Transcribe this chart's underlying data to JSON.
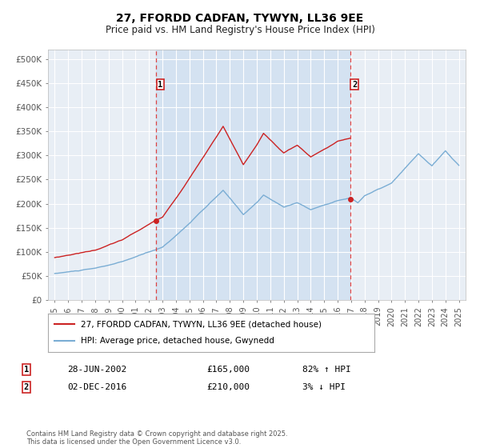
{
  "title": "27, FFORDD CADFAN, TYWYN, LL36 9EE",
  "subtitle": "Price paid vs. HM Land Registry's House Price Index (HPI)",
  "legend_line1": "27, FFORDD CADFAN, TYWYN, LL36 9EE (detached house)",
  "legend_line2": "HPI: Average price, detached house, Gwynedd",
  "transaction1_date": "28-JUN-2002",
  "transaction1_price": "£165,000",
  "transaction1_hpi": "82% ↑ HPI",
  "transaction1_x": 2002.49,
  "transaction1_y": 165000,
  "transaction2_date": "02-DEC-2016",
  "transaction2_price": "£210,000",
  "transaction2_hpi": "3% ↓ HPI",
  "transaction2_x": 2016.92,
  "transaction2_y": 210000,
  "vline1_x": 2002.49,
  "vline2_x": 2016.92,
  "ylim": [
    0,
    520000
  ],
  "xlim": [
    1994.5,
    2025.5
  ],
  "background_color": "#ffffff",
  "plot_bg_color": "#e8eef5",
  "grid_color": "#ffffff",
  "hpi_color": "#7aadd4",
  "price_color": "#cc2222",
  "vline_color": "#dd4444",
  "footer_text": "Contains HM Land Registry data © Crown copyright and database right 2025.\nThis data is licensed under the Open Government Licence v3.0.",
  "yticks": [
    0,
    50000,
    100000,
    150000,
    200000,
    250000,
    300000,
    350000,
    400000,
    450000,
    500000
  ],
  "ytick_labels": [
    "£0",
    "£50K",
    "£100K",
    "£150K",
    "£200K",
    "£250K",
    "£300K",
    "£350K",
    "£400K",
    "£450K",
    "£500K"
  ],
  "xticks": [
    1995,
    1996,
    1997,
    1998,
    1999,
    2000,
    2001,
    2002,
    2003,
    2004,
    2005,
    2006,
    2007,
    2008,
    2009,
    2010,
    2011,
    2012,
    2013,
    2014,
    2015,
    2016,
    2017,
    2018,
    2019,
    2020,
    2021,
    2022,
    2023,
    2024,
    2025
  ]
}
